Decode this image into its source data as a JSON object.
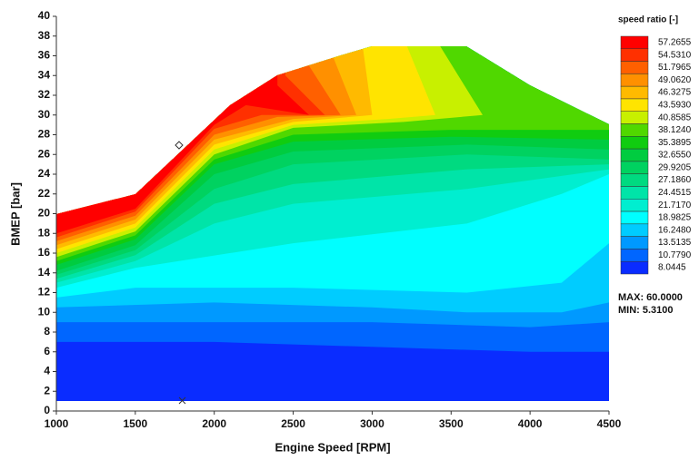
{
  "chart_data": {
    "type": "contour",
    "x_label": "Engine Speed [RPM]",
    "y_label": "BMEP [bar]",
    "xlim": [
      1000,
      4500
    ],
    "xticks": [
      1000,
      1500,
      2000,
      2500,
      3000,
      3500,
      4000,
      4500
    ],
    "ylim": [
      0,
      40
    ],
    "yticks": [
      0,
      2,
      4,
      6,
      8,
      10,
      12,
      14,
      16,
      18,
      20,
      22,
      24,
      26,
      28,
      30,
      32,
      34,
      36,
      38,
      40
    ],
    "colorbar": {
      "title": "speed ratio [-]",
      "ticks": [
        57.2655,
        {
          "value": 54.531,
          "label": "54.5310"
        },
        51.7965,
        {
          "value": 49.062,
          "label": "49.0620"
        },
        46.3275,
        {
          "value": 43.593,
          "label": "43.5930"
        },
        40.8585,
        {
          "value": 38.124,
          "label": "38.1240"
        },
        35.3895,
        {
          "value": 32.655,
          "label": "32.6550"
        },
        29.9205,
        {
          "value": 27.186,
          "label": "27.1860"
        },
        24.4515,
        {
          "value": 21.717,
          "label": "21.7170"
        },
        18.9825,
        {
          "value": 16.248,
          "label": "16.2480"
        },
        13.5135,
        {
          "value": 10.779,
          "label": "10.7790"
        },
        8.0445
      ],
      "colors": [
        "#ff0000",
        "#ff3000",
        "#ff6000",
        "#ff9000",
        "#ffba00",
        "#ffe400",
        "#c8f000",
        "#50d800",
        "#10cc10",
        "#00cc40",
        "#00d260",
        "#00da80",
        "#00e4a8",
        "#00eed0",
        "#00ffff",
        "#00ccff",
        "#0099ff",
        "#0066ff",
        "#0a2cff"
      ],
      "max_label": "MAX: 60.0000",
      "min_label": "MIN: 5.3100"
    }
  }
}
